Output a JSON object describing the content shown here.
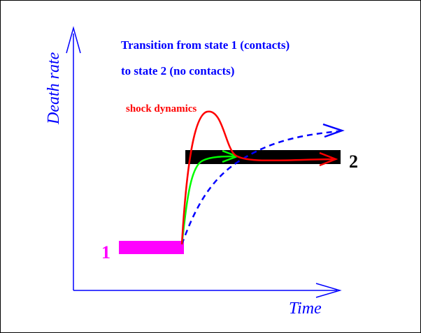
{
  "diagram": {
    "title_lines": [
      "Transition from state 1 (contacts)",
      "to state 2 (no contacts)"
    ],
    "y_axis_label": "Death rate",
    "x_axis_label": "Time",
    "annotation": "shock dynamics",
    "state_labels": {
      "state_1": "1",
      "state_2": "2"
    },
    "colors": {
      "axes": "#0000ff",
      "title": "#0000ff",
      "state_1_bar": "#ff00ff",
      "state_2_bar": "#000000",
      "shock_curve": "#ff0000",
      "smooth_curve": "#00ff00",
      "slow_curve": "#0000ff",
      "annotation": "#ff0000",
      "state_1_label": "#ff00ff",
      "state_2_label": "#000000"
    },
    "curves": [
      {
        "id": "shock",
        "color": "red",
        "style": "solid"
      },
      {
        "id": "smooth",
        "color": "green",
        "style": "solid"
      },
      {
        "id": "slow",
        "color": "blue",
        "style": "dashed"
      }
    ]
  }
}
